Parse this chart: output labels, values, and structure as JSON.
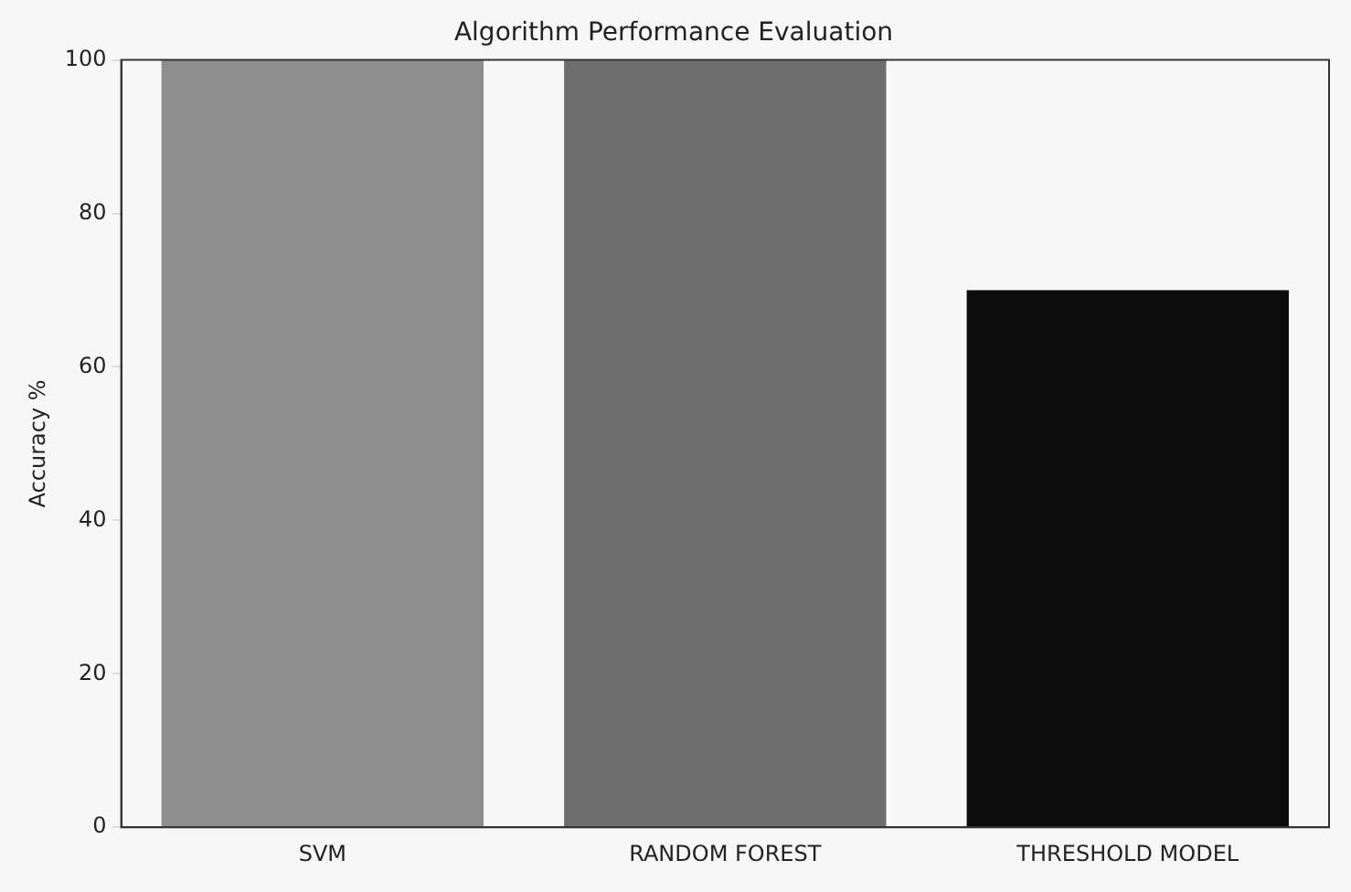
{
  "chart_data": {
    "type": "bar",
    "title": "Algorithm Performance Evaluation",
    "ylabel": "Accuracy %",
    "categories": [
      "SVM",
      "RANDOM FOREST",
      "THRESHOLD MODEL"
    ],
    "values": [
      100,
      100,
      70
    ],
    "colors": [
      "#8e8e8e",
      "#6e6e6e",
      "#0c0c0c"
    ],
    "ylim": [
      0,
      100
    ],
    "yticks": [
      0,
      20,
      40,
      60,
      80,
      100
    ],
    "grid": false,
    "legend": false
  }
}
